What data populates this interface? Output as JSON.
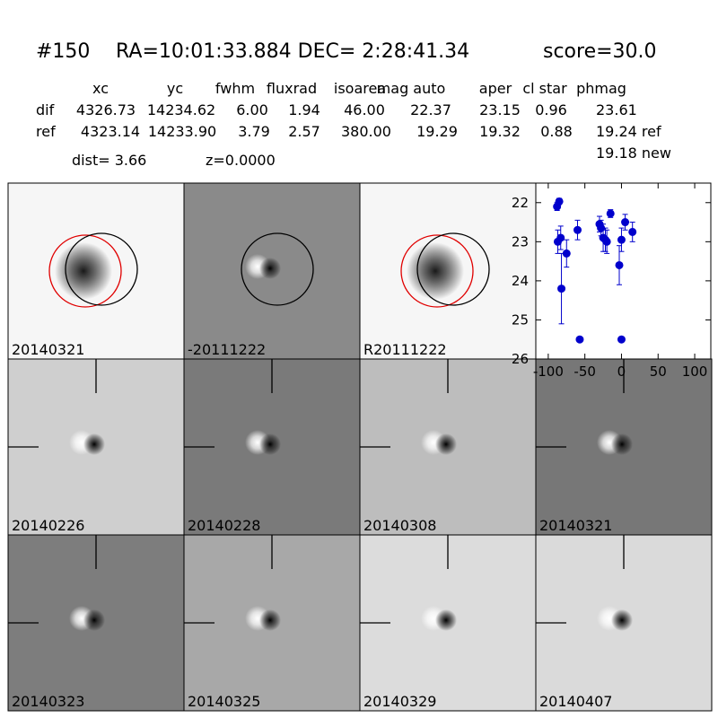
{
  "header": {
    "id": "#150",
    "coords": "RA=10:01:33.884 DEC= 2:28:41.34",
    "score": "score=30.0"
  },
  "table": {
    "columns": [
      "xc",
      "yc",
      "fwhm",
      "fluxrad",
      "isoarea",
      "mag auto",
      "aper",
      "cl star",
      "phmag"
    ],
    "rows": [
      {
        "label": "dif",
        "cells": [
          "4326.73",
          "14234.62",
          "6.00",
          "1.94",
          "46.00",
          "22.37",
          "23.15",
          "0.96",
          "23.61"
        ]
      },
      {
        "label": "ref",
        "cells": [
          "4323.14",
          "14233.90",
          "3.79",
          "2.57",
          "380.00",
          "19.29",
          "19.32",
          "0.88",
          "19.24 ref"
        ]
      }
    ],
    "extra": "19.18 new",
    "dist": "dist=  3.66",
    "z": "z=0.0000"
  },
  "stamps": [
    {
      "label": "20140321"
    },
    {
      "label": "-20111222"
    },
    {
      "label": "R20111222"
    },
    {
      "label": "20140226"
    },
    {
      "label": "20140228"
    },
    {
      "label": "20140308"
    },
    {
      "label": "20140321",
      "color": "#ff0000"
    },
    {
      "label": "20140323"
    },
    {
      "label": "20140325"
    },
    {
      "label": "20140329"
    },
    {
      "label": "20140407"
    }
  ],
  "chart_data": {
    "type": "scatter",
    "color": "#0000cc",
    "x": [
      -88,
      -85,
      -87,
      -83,
      -82,
      -75,
      -60,
      -57,
      -30,
      -28,
      -25,
      -22,
      -20,
      -15,
      -3,
      0,
      0,
      5,
      15
    ],
    "values": [
      22.1,
      21.97,
      23.0,
      22.9,
      24.2,
      23.3,
      22.7,
      25.5,
      22.55,
      22.65,
      22.9,
      22.95,
      23.0,
      22.28,
      23.6,
      22.95,
      25.5,
      22.5,
      22.75
    ],
    "errors": [
      0.1,
      0.08,
      0.3,
      0.3,
      0.9,
      0.35,
      0.25,
      0.05,
      0.2,
      0.2,
      0.35,
      0.3,
      0.3,
      0.1,
      0.5,
      0.3,
      0.05,
      0.2,
      0.25
    ],
    "xlim": [
      -117,
      122
    ],
    "ylim": [
      26,
      21.5
    ],
    "xticks": [
      -100,
      -50,
      0,
      50,
      100
    ],
    "yticks": [
      22,
      23,
      24,
      25,
      26
    ]
  }
}
